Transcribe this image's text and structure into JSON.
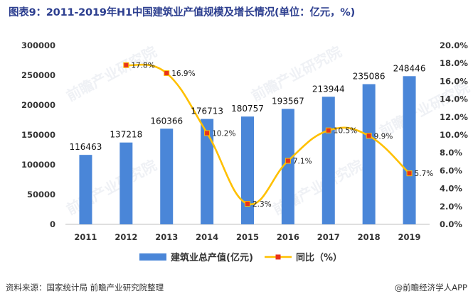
{
  "title": "图表9：2011-2019年H1中国建筑业产值规模及增长情况(单位：亿元，%)",
  "source": "资料来源：国家统计局 前瞻产业研究院整理",
  "brand": "@前瞻经济学人APP",
  "watermark": "前瞻产业研究院",
  "colors": {
    "bar": "#4a86d8",
    "line": "#ffc000",
    "marker": "#e8321c",
    "title": "#2c3e8f"
  },
  "chart_data": {
    "type": "bar",
    "categories": [
      "2011",
      "2012",
      "2013",
      "2014",
      "2015",
      "2016",
      "2017",
      "2018",
      "2019"
    ],
    "series": [
      {
        "name": "建筑业总产值(亿元)",
        "type": "bar",
        "axis": "left",
        "values": [
          116463,
          137218,
          160366,
          176713,
          180757,
          193567,
          213944,
          235086,
          248446
        ],
        "labels": [
          "116463",
          "137218",
          "160366",
          "176713",
          "180757",
          "193567",
          "213944",
          "235086",
          "248446"
        ]
      },
      {
        "name": "同比（%）",
        "type": "line",
        "axis": "right",
        "values": [
          null,
          17.8,
          16.9,
          10.2,
          2.3,
          7.1,
          10.5,
          9.9,
          5.7
        ],
        "labels": [
          "",
          "17.8%",
          "16.9%",
          "10.2%",
          "2.3%",
          "7.1%",
          "10.5%",
          "9.9%",
          "5.7%"
        ]
      }
    ],
    "ylim_left": [
      0,
      300000
    ],
    "yticks_left": [
      "0",
      "50000",
      "100000",
      "150000",
      "200000",
      "250000",
      "300000"
    ],
    "ylim_right": [
      0,
      20
    ],
    "yticks_right": [
      "0.0%",
      "2.0%",
      "4.0%",
      "6.0%",
      "8.0%",
      "10.0%",
      "12.0%",
      "14.0%",
      "16.0%",
      "18.0%",
      "20.0%"
    ],
    "grid": false,
    "legend_position": "bottom"
  }
}
